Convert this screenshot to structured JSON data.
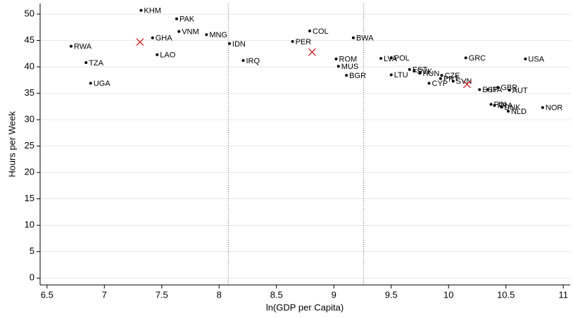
{
  "chart_data": {
    "type": "scatter",
    "x_label": "ln(GDP per Capita)",
    "y_label": "Hours per Week",
    "xlim": [
      6.44,
      11.06
    ],
    "ylim": [
      -1.3,
      52
    ],
    "xticks": [
      6.5,
      7,
      7.5,
      8,
      8.5,
      9,
      9.5,
      10,
      10.5,
      11
    ],
    "yticks": [
      0,
      5,
      10,
      15,
      20,
      25,
      30,
      35,
      40,
      45,
      50
    ],
    "grid": true,
    "vlines": [
      8.08,
      9.26
    ],
    "series": [
      {
        "color": "#000000",
        "marker": "dot",
        "labels": [
          "KHM",
          "PAK",
          "VNM",
          "MNG",
          "GHA",
          "IDN",
          "RWA",
          "TZA",
          "LAO",
          "UGA",
          "IRQ",
          "COL",
          "PER",
          "BWA",
          "ROM",
          "MUS",
          "BGR",
          "LVA",
          "POL",
          "LTU",
          "EST",
          "SVK",
          "HUN",
          "CZE",
          "CYP",
          "PRT",
          "SVN",
          "GRC",
          "USA",
          "ESP",
          "ITA",
          "GBR",
          "AUT",
          "FIN",
          "FRA",
          "DNK",
          "NLD",
          "NOR"
        ],
        "x": [
          7.32,
          7.63,
          7.65,
          7.89,
          7.42,
          8.09,
          6.71,
          6.84,
          7.46,
          6.88,
          8.21,
          8.79,
          8.64,
          9.17,
          9.02,
          9.04,
          9.11,
          9.41,
          9.5,
          9.5,
          9.66,
          9.7,
          9.75,
          9.94,
          9.83,
          9.93,
          10.04,
          10.15,
          10.67,
          10.27,
          10.34,
          10.43,
          10.53,
          10.37,
          10.4,
          10.46,
          10.52,
          10.82
        ],
        "values": [
          50.7,
          49.1,
          46.7,
          46.1,
          45.5,
          44.4,
          43.9,
          40.8,
          42.3,
          36.9,
          41.2,
          46.8,
          44.8,
          45.5,
          41.5,
          40.1,
          38.4,
          41.6,
          41.7,
          38.5,
          39.5,
          39.2,
          38.8,
          38.4,
          36.9,
          37.8,
          37.3,
          41.7,
          41.5,
          35.7,
          35.7,
          36.1,
          35.6,
          32.9,
          32.7,
          32.4,
          31.6,
          32.3
        ]
      },
      {
        "color": "#e8141c",
        "marker": "x",
        "x": [
          7.31,
          8.81,
          10.16
        ],
        "values": [
          44.7,
          42.8,
          36.7
        ]
      }
    ]
  }
}
